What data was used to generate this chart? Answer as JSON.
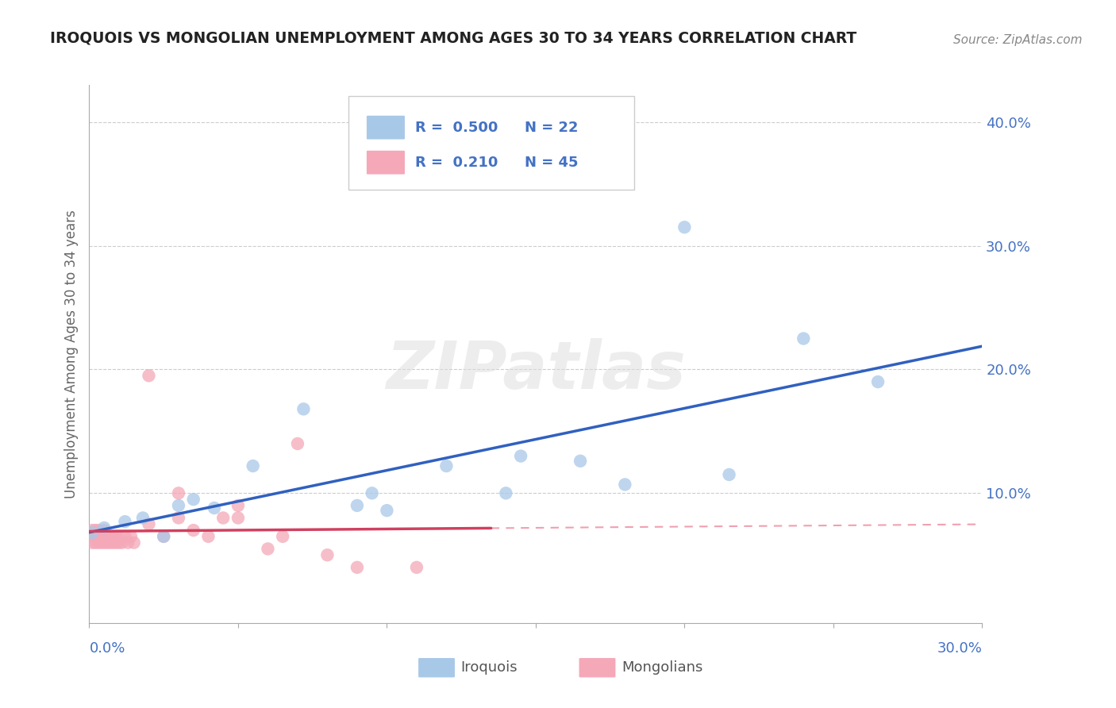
{
  "title": "IROQUOIS VS MONGOLIAN UNEMPLOYMENT AMONG AGES 30 TO 34 YEARS CORRELATION CHART",
  "source": "Source: ZipAtlas.com",
  "ylabel": "Unemployment Among Ages 30 to 34 years",
  "xlim": [
    0.0,
    0.3
  ],
  "ylim": [
    -0.005,
    0.43
  ],
  "iroquois_color": "#A8C8E8",
  "mongolian_color": "#F4A8B8",
  "iroquois_line_color": "#3060C0",
  "mongolian_line_color": "#D04060",
  "mongolian_dashed_color": "#F0A0B0",
  "label_color": "#4472C4",
  "watermark": "ZIPatlas",
  "iroquois_x": [
    0.001,
    0.005,
    0.012,
    0.018,
    0.025,
    0.03,
    0.035,
    0.042,
    0.055,
    0.072,
    0.09,
    0.095,
    0.1,
    0.12,
    0.14,
    0.145,
    0.165,
    0.18,
    0.2,
    0.215,
    0.24,
    0.265
  ],
  "iroquois_y": [
    0.068,
    0.072,
    0.077,
    0.08,
    0.065,
    0.09,
    0.095,
    0.088,
    0.122,
    0.168,
    0.09,
    0.1,
    0.086,
    0.122,
    0.1,
    0.13,
    0.126,
    0.107,
    0.315,
    0.115,
    0.225,
    0.19
  ],
  "mongolian_x": [
    0.001,
    0.001,
    0.001,
    0.002,
    0.002,
    0.002,
    0.003,
    0.003,
    0.003,
    0.004,
    0.004,
    0.005,
    0.005,
    0.005,
    0.006,
    0.006,
    0.007,
    0.007,
    0.008,
    0.008,
    0.009,
    0.009,
    0.01,
    0.01,
    0.011,
    0.012,
    0.013,
    0.014,
    0.015,
    0.02,
    0.025,
    0.03,
    0.035,
    0.04,
    0.045,
    0.05,
    0.06,
    0.065,
    0.07,
    0.08,
    0.09,
    0.11,
    0.02,
    0.03,
    0.05
  ],
  "mongolian_y": [
    0.06,
    0.065,
    0.07,
    0.06,
    0.065,
    0.07,
    0.06,
    0.065,
    0.07,
    0.06,
    0.065,
    0.06,
    0.065,
    0.07,
    0.06,
    0.065,
    0.06,
    0.065,
    0.06,
    0.065,
    0.06,
    0.065,
    0.06,
    0.065,
    0.06,
    0.065,
    0.06,
    0.065,
    0.06,
    0.075,
    0.065,
    0.08,
    0.07,
    0.065,
    0.08,
    0.08,
    0.055,
    0.065,
    0.14,
    0.05,
    0.04,
    0.04,
    0.195,
    0.1,
    0.09
  ]
}
